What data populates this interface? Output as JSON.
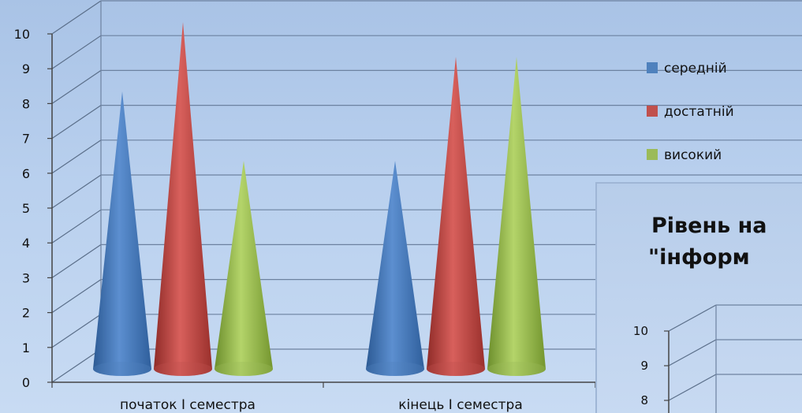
{
  "chart_data": [
    {
      "type": "bar",
      "shape": "cone",
      "categories": [
        "початок І семестра",
        "кінець І семестра"
      ],
      "series": [
        {
          "name": "середній",
          "color": "#4f81bd",
          "values": [
            8,
            6
          ]
        },
        {
          "name": "достатній",
          "color": "#c0504d",
          "values": [
            10,
            9
          ]
        },
        {
          "name": "високий",
          "color": "#9bbb59",
          "values": [
            6,
            9
          ]
        }
      ],
      "y_ticks": [
        "0",
        "1",
        "2",
        "3",
        "4",
        "5",
        "6",
        "7",
        "8",
        "9",
        "10"
      ],
      "ylim": [
        0,
        10
      ],
      "grid": true,
      "legend": "right"
    },
    {
      "type": "bar",
      "partial": true,
      "title_lines": [
        "Рівень на",
        "\"інформ"
      ],
      "y_ticks": [
        "8",
        "9",
        "10"
      ]
    }
  ]
}
